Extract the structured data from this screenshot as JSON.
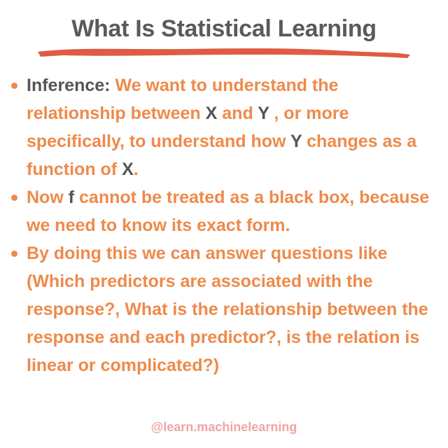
{
  "title": "What Is Statistical Learning",
  "colors": {
    "accent": "#ee8a4b",
    "dark_text": "#555555",
    "underline": "#e05a44",
    "footer": "#f0a4a4"
  },
  "bullets": [
    {
      "label": "Inference:",
      "t1": "We want to understand the relationship between",
      "v1": "X",
      "t2": "and",
      "v2": "Y",
      "t3": ", or more specifically, to understand how",
      "v3": "Y",
      "t4": "changes as a function of",
      "v4": "X",
      "t5": "."
    },
    {
      "t1": "Now",
      "v1": "f",
      "t2": "cannot be treated as a black box, because we need to know its exact form."
    },
    {
      "text": "By doing this we can answer questions like (Which predictors are associated with the response?, What is the relationship between the response and each predictor?, is the relation is linear or complicated?)"
    }
  ],
  "footer": "@learn.machinelearning"
}
